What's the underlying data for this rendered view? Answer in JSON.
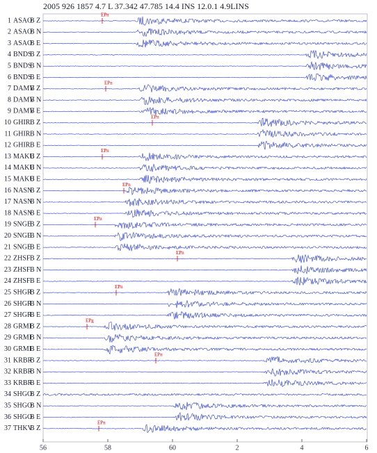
{
  "header": {
    "title": "2005 926 1857  4.7 L  37.342  47.785 14.4  INS 12.0.1 4.9LINS"
  },
  "rows": [
    {
      "n": 1,
      "station": "ASAO",
      "comp": "B Z",
      "pick": "EPn"
    },
    {
      "n": 2,
      "station": "ASAO",
      "comp": "B N"
    },
    {
      "n": 3,
      "station": "ASAO",
      "comp": "B E"
    },
    {
      "n": 4,
      "station": "BNDS",
      "comp": "B Z"
    },
    {
      "n": 5,
      "station": "BNDS",
      "comp": "B N"
    },
    {
      "n": 6,
      "station": "BNDS",
      "comp": "B E"
    },
    {
      "n": 7,
      "station": "DAMV",
      "comp": "B Z",
      "pick": "EPn"
    },
    {
      "n": 8,
      "station": "DAMV",
      "comp": "B N"
    },
    {
      "n": 9,
      "station": "DAMV",
      "comp": "B E"
    },
    {
      "n": 10,
      "station": "GHIR",
      "comp": "B Z",
      "pick": "EPn"
    },
    {
      "n": 11,
      "station": "GHIR",
      "comp": "B N"
    },
    {
      "n": 12,
      "station": "GHIR",
      "comp": "B E"
    },
    {
      "n": 13,
      "station": "MAKU",
      "comp": "B Z",
      "pick": "EPn"
    },
    {
      "n": 14,
      "station": "MAKU",
      "comp": "B N"
    },
    {
      "n": 15,
      "station": "MAKU",
      "comp": "B E"
    },
    {
      "n": 16,
      "station": "NASN",
      "comp": "B Z",
      "pick": "EPn"
    },
    {
      "n": 17,
      "station": "NASN",
      "comp": "B N"
    },
    {
      "n": 18,
      "station": "NASN",
      "comp": "B E"
    },
    {
      "n": 19,
      "station": "SNGE",
      "comp": "B Z",
      "pick": "EPn"
    },
    {
      "n": 20,
      "station": "SNGE",
      "comp": "B N"
    },
    {
      "n": 21,
      "station": "SNGE",
      "comp": "B E"
    },
    {
      "n": 22,
      "station": "ZHSF",
      "comp": "B Z",
      "pick": "EPn"
    },
    {
      "n": 23,
      "station": "ZHSF",
      "comp": "B N"
    },
    {
      "n": 24,
      "station": "ZHSF",
      "comp": "B E"
    },
    {
      "n": 25,
      "station": "SHGR",
      "comp": "B Z",
      "pick": "EPn"
    },
    {
      "n": 26,
      "station": "SHGR",
      "comp": "B N"
    },
    {
      "n": 27,
      "station": "SHGR",
      "comp": "B E"
    },
    {
      "n": 28,
      "station": "GRMI",
      "comp": "B Z",
      "pick": "EPg"
    },
    {
      "n": 29,
      "station": "GRMI",
      "comp": "B N"
    },
    {
      "n": 30,
      "station": "GRMI",
      "comp": "B E"
    },
    {
      "n": 31,
      "station": "KRBR",
      "comp": "B Z",
      "pick": "EPn"
    },
    {
      "n": 32,
      "station": "KRBR",
      "comp": "B N"
    },
    {
      "n": 33,
      "station": "KRBR",
      "comp": "B E"
    },
    {
      "n": 34,
      "station": "SHGO",
      "comp": "B Z"
    },
    {
      "n": 35,
      "station": "SHGO",
      "comp": "B N"
    },
    {
      "n": 36,
      "station": "SHGO",
      "comp": "B E"
    },
    {
      "n": 37,
      "station": "THKV",
      "comp": "B Z",
      "pick": "EPn"
    }
  ],
  "axis": {
    "labels": [
      "56",
      "58",
      "60",
      "2",
      "4",
      "6"
    ]
  }
}
